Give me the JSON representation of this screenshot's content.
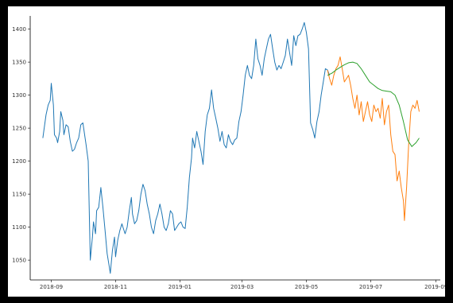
{
  "chart_data": {
    "type": "line",
    "title": "",
    "xlabel": "",
    "ylabel": "",
    "xlim": [
      "2018-08-12",
      "2019-09-05"
    ],
    "ylim": [
      1020,
      1420
    ],
    "grid": false,
    "x_ticks": [
      "2018-09",
      "2018-11",
      "2019-01",
      "2019-03",
      "2019-05",
      "2019-07",
      "2019-09"
    ],
    "y_ticks": [
      1050,
      1100,
      1150,
      1200,
      1250,
      1300,
      1350,
      1400
    ],
    "series": [
      {
        "color": "#1f77b4",
        "points": [
          [
            "2018-08-24",
            1235
          ],
          [
            "2018-08-27",
            1270
          ],
          [
            "2018-08-29",
            1285
          ],
          [
            "2018-08-31",
            1292
          ],
          [
            "2018-09-01",
            1318
          ],
          [
            "2018-09-03",
            1285
          ],
          [
            "2018-09-04",
            1240
          ],
          [
            "2018-09-06",
            1235
          ],
          [
            "2018-09-07",
            1228
          ],
          [
            "2018-09-09",
            1245
          ],
          [
            "2018-09-10",
            1275
          ],
          [
            "2018-09-12",
            1262
          ],
          [
            "2018-09-13",
            1240
          ],
          [
            "2018-09-15",
            1255
          ],
          [
            "2018-09-17",
            1252
          ],
          [
            "2018-09-19",
            1230
          ],
          [
            "2018-09-21",
            1215
          ],
          [
            "2018-09-23",
            1218
          ],
          [
            "2018-09-25",
            1228
          ],
          [
            "2018-09-27",
            1235
          ],
          [
            "2018-09-29",
            1255
          ],
          [
            "2018-10-01",
            1258
          ],
          [
            "2018-10-04",
            1225
          ],
          [
            "2018-10-06",
            1200
          ],
          [
            "2018-10-08",
            1050
          ],
          [
            "2018-10-10",
            1085
          ],
          [
            "2018-10-11",
            1108
          ],
          [
            "2018-10-13",
            1090
          ],
          [
            "2018-10-14",
            1125
          ],
          [
            "2018-10-16",
            1130
          ],
          [
            "2018-10-18",
            1160
          ],
          [
            "2018-10-20",
            1130
          ],
          [
            "2018-10-22",
            1095
          ],
          [
            "2018-10-24",
            1060
          ],
          [
            "2018-10-26",
            1040
          ],
          [
            "2018-10-27",
            1030
          ],
          [
            "2018-10-29",
            1065
          ],
          [
            "2018-10-31",
            1085
          ],
          [
            "2018-11-01",
            1055
          ],
          [
            "2018-11-03",
            1080
          ],
          [
            "2018-11-05",
            1095
          ],
          [
            "2018-11-07",
            1105
          ],
          [
            "2018-11-08",
            1100
          ],
          [
            "2018-11-10",
            1090
          ],
          [
            "2018-11-12",
            1100
          ],
          [
            "2018-11-14",
            1125
          ],
          [
            "2018-11-16",
            1145
          ],
          [
            "2018-11-17",
            1120
          ],
          [
            "2018-11-19",
            1105
          ],
          [
            "2018-11-21",
            1110
          ],
          [
            "2018-11-23",
            1125
          ],
          [
            "2018-11-25",
            1150
          ],
          [
            "2018-11-27",
            1165
          ],
          [
            "2018-11-29",
            1155
          ],
          [
            "2018-12-01",
            1135
          ],
          [
            "2018-12-03",
            1120
          ],
          [
            "2018-12-05",
            1100
          ],
          [
            "2018-12-07",
            1090
          ],
          [
            "2018-12-09",
            1110
          ],
          [
            "2018-12-11",
            1120
          ],
          [
            "2018-12-13",
            1135
          ],
          [
            "2018-12-15",
            1120
          ],
          [
            "2018-12-17",
            1100
          ],
          [
            "2018-12-19",
            1095
          ],
          [
            "2018-12-21",
            1105
          ],
          [
            "2018-12-23",
            1125
          ],
          [
            "2018-12-25",
            1120
          ],
          [
            "2018-12-27",
            1095
          ],
          [
            "2018-12-29",
            1100
          ],
          [
            "2018-12-31",
            1105
          ],
          [
            "2019-01-02",
            1108
          ],
          [
            "2019-01-04",
            1100
          ],
          [
            "2019-01-06",
            1098
          ],
          [
            "2019-01-08",
            1130
          ],
          [
            "2019-01-10",
            1175
          ],
          [
            "2019-01-12",
            1205
          ],
          [
            "2019-01-13",
            1235
          ],
          [
            "2019-01-15",
            1220
          ],
          [
            "2019-01-17",
            1245
          ],
          [
            "2019-01-19",
            1230
          ],
          [
            "2019-01-21",
            1215
          ],
          [
            "2019-01-23",
            1195
          ],
          [
            "2019-01-25",
            1245
          ],
          [
            "2019-01-27",
            1270
          ],
          [
            "2019-01-29",
            1280
          ],
          [
            "2019-01-31",
            1308
          ],
          [
            "2019-02-02",
            1280
          ],
          [
            "2019-02-04",
            1265
          ],
          [
            "2019-02-06",
            1250
          ],
          [
            "2019-02-08",
            1230
          ],
          [
            "2019-02-10",
            1245
          ],
          [
            "2019-02-12",
            1225
          ],
          [
            "2019-02-14",
            1220
          ],
          [
            "2019-02-16",
            1240
          ],
          [
            "2019-02-18",
            1230
          ],
          [
            "2019-02-20",
            1225
          ],
          [
            "2019-02-22",
            1232
          ],
          [
            "2019-02-24",
            1235
          ],
          [
            "2019-02-26",
            1260
          ],
          [
            "2019-02-28",
            1275
          ],
          [
            "2019-03-02",
            1300
          ],
          [
            "2019-03-04",
            1330
          ],
          [
            "2019-03-06",
            1345
          ],
          [
            "2019-03-08",
            1330
          ],
          [
            "2019-03-10",
            1325
          ],
          [
            "2019-03-12",
            1345
          ],
          [
            "2019-03-14",
            1385
          ],
          [
            "2019-03-16",
            1355
          ],
          [
            "2019-03-18",
            1345
          ],
          [
            "2019-03-20",
            1330
          ],
          [
            "2019-03-22",
            1355
          ],
          [
            "2019-03-24",
            1370
          ],
          [
            "2019-03-26",
            1385
          ],
          [
            "2019-03-28",
            1392
          ],
          [
            "2019-03-30",
            1370
          ],
          [
            "2019-04-01",
            1350
          ],
          [
            "2019-04-03",
            1338
          ],
          [
            "2019-04-05",
            1345
          ],
          [
            "2019-04-07",
            1340
          ],
          [
            "2019-04-09",
            1350
          ],
          [
            "2019-04-11",
            1360
          ],
          [
            "2019-04-13",
            1385
          ],
          [
            "2019-04-15",
            1365
          ],
          [
            "2019-04-17",
            1345
          ],
          [
            "2019-04-19",
            1390
          ],
          [
            "2019-04-21",
            1375
          ],
          [
            "2019-04-23",
            1390
          ],
          [
            "2019-04-25",
            1392
          ],
          [
            "2019-04-27",
            1400
          ],
          [
            "2019-04-29",
            1410
          ],
          [
            "2019-05-01",
            1395
          ],
          [
            "2019-05-03",
            1370
          ],
          [
            "2019-05-05",
            1258
          ],
          [
            "2019-05-07",
            1248
          ],
          [
            "2019-05-09",
            1235
          ],
          [
            "2019-05-11",
            1260
          ],
          [
            "2019-05-13",
            1275
          ],
          [
            "2019-05-15",
            1300
          ],
          [
            "2019-05-17",
            1320
          ],
          [
            "2019-05-19",
            1340
          ],
          [
            "2019-05-21",
            1338
          ],
          [
            "2019-05-23",
            1330
          ]
        ]
      },
      {
        "color": "#ff7f0e",
        "points": [
          [
            "2019-05-21",
            1338
          ],
          [
            "2019-05-23",
            1325
          ],
          [
            "2019-05-25",
            1315
          ],
          [
            "2019-05-27",
            1330
          ],
          [
            "2019-05-29",
            1340
          ],
          [
            "2019-05-31",
            1345
          ],
          [
            "2019-06-02",
            1358
          ],
          [
            "2019-06-04",
            1340
          ],
          [
            "2019-06-06",
            1320
          ],
          [
            "2019-06-08",
            1325
          ],
          [
            "2019-06-10",
            1330
          ],
          [
            "2019-06-12",
            1315
          ],
          [
            "2019-06-14",
            1295
          ],
          [
            "2019-06-16",
            1280
          ],
          [
            "2019-06-18",
            1300
          ],
          [
            "2019-06-20",
            1270
          ],
          [
            "2019-06-22",
            1290
          ],
          [
            "2019-06-24",
            1260
          ],
          [
            "2019-06-26",
            1275
          ],
          [
            "2019-06-28",
            1290
          ],
          [
            "2019-06-30",
            1270
          ],
          [
            "2019-07-02",
            1260
          ],
          [
            "2019-07-04",
            1285
          ],
          [
            "2019-07-06",
            1275
          ],
          [
            "2019-07-08",
            1280
          ],
          [
            "2019-07-10",
            1265
          ],
          [
            "2019-07-12",
            1295
          ],
          [
            "2019-07-14",
            1255
          ],
          [
            "2019-07-16",
            1275
          ],
          [
            "2019-07-18",
            1285
          ],
          [
            "2019-07-20",
            1240
          ],
          [
            "2019-07-22",
            1215
          ],
          [
            "2019-07-24",
            1210
          ],
          [
            "2019-07-26",
            1170
          ],
          [
            "2019-07-28",
            1185
          ],
          [
            "2019-07-30",
            1160
          ],
          [
            "2019-08-01",
            1140
          ],
          [
            "2019-08-02",
            1110
          ],
          [
            "2019-08-04",
            1160
          ],
          [
            "2019-08-06",
            1225
          ],
          [
            "2019-08-08",
            1275
          ],
          [
            "2019-08-10",
            1285
          ],
          [
            "2019-08-12",
            1280
          ],
          [
            "2019-08-14",
            1292
          ],
          [
            "2019-08-16",
            1275
          ]
        ]
      },
      {
        "color": "#2ca02c",
        "points": [
          [
            "2019-05-21",
            1330
          ],
          [
            "2019-05-25",
            1333
          ],
          [
            "2019-05-29",
            1338
          ],
          [
            "2019-06-02",
            1342
          ],
          [
            "2019-06-06",
            1346
          ],
          [
            "2019-06-10",
            1349
          ],
          [
            "2019-06-14",
            1350
          ],
          [
            "2019-06-18",
            1348
          ],
          [
            "2019-06-22",
            1340
          ],
          [
            "2019-06-26",
            1330
          ],
          [
            "2019-06-30",
            1320
          ],
          [
            "2019-07-04",
            1315
          ],
          [
            "2019-07-08",
            1310
          ],
          [
            "2019-07-12",
            1307
          ],
          [
            "2019-07-16",
            1306
          ],
          [
            "2019-07-20",
            1305
          ],
          [
            "2019-07-24",
            1300
          ],
          [
            "2019-07-28",
            1285
          ],
          [
            "2019-08-01",
            1260
          ],
          [
            "2019-08-05",
            1232
          ],
          [
            "2019-08-09",
            1222
          ],
          [
            "2019-08-13",
            1228
          ],
          [
            "2019-08-16",
            1235
          ]
        ]
      }
    ]
  }
}
